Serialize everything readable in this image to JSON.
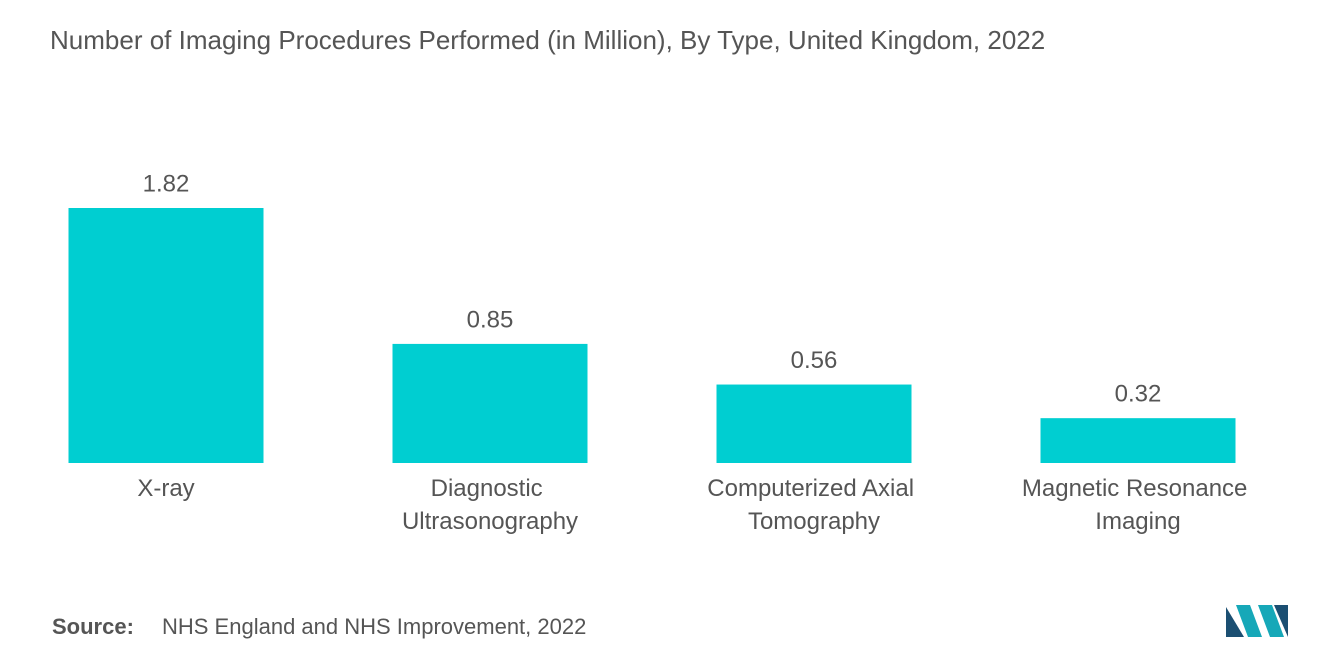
{
  "chart_data": {
    "type": "bar",
    "title": "Number of Imaging Procedures Performed (in Million), By Type, United Kingdom, 2022",
    "categories": [
      "X-ray",
      "Diagnostic Ultrasonography",
      "Computerized Axial Tomography",
      "Magnetic Resonance Imaging"
    ],
    "values": [
      1.82,
      0.85,
      0.56,
      0.32
    ],
    "color": "#00ced1",
    "source_label": "Source:",
    "source": "NHS England and NHS Improvement, 2022"
  }
}
